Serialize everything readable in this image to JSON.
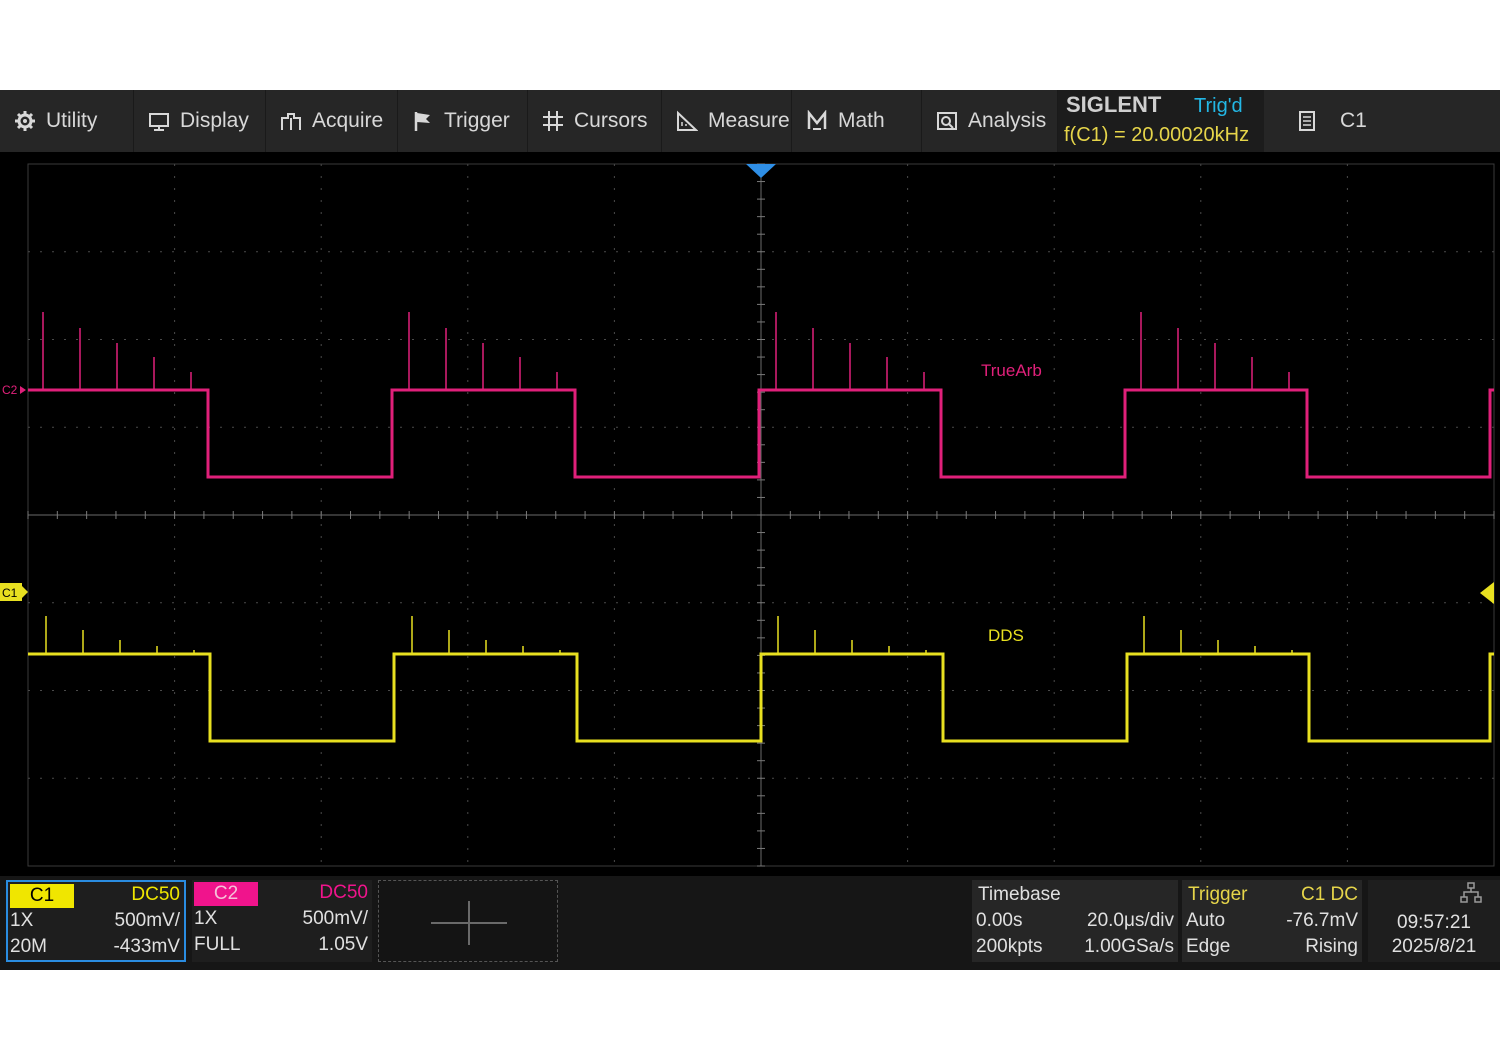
{
  "menu": {
    "items": [
      {
        "label": "Utility",
        "icon": "gear-icon"
      },
      {
        "label": "Display",
        "icon": "monitor-icon"
      },
      {
        "label": "Acquire",
        "icon": "acquire-icon"
      },
      {
        "label": "Trigger",
        "icon": "flag-icon"
      },
      {
        "label": "Cursors",
        "icon": "cursors-icon"
      },
      {
        "label": "Measure",
        "icon": "measure-icon"
      },
      {
        "label": "Math",
        "icon": "math-icon"
      },
      {
        "label": "Analysis",
        "icon": "analysis-icon"
      }
    ]
  },
  "brand": {
    "logo": "SIGLENT",
    "trigger_status": "Trig'd",
    "frequency": "f(C1) = 20.00020kHz"
  },
  "channel_menu": {
    "label": "C1",
    "icon": "document-icon"
  },
  "markers": {
    "c2_label": "C2",
    "c1_label": "C1"
  },
  "waveforms": {
    "c2": {
      "name": "TrueArb",
      "color": "#e0207a"
    },
    "c1": {
      "name": "DDS",
      "color": "#e8e020"
    }
  },
  "channels": {
    "c1": {
      "tag": "C1",
      "coupling": "DC50",
      "probe": "1X",
      "scale": "500mV/",
      "bandwidth": "20M",
      "offset": "-433mV",
      "color": "#f0e600"
    },
    "c2": {
      "tag": "C2",
      "coupling": "DC50",
      "probe": "1X",
      "scale": "500mV/",
      "bandwidth": "FULL",
      "offset": "1.05V",
      "color": "#f0148c"
    }
  },
  "timebase": {
    "title": "Timebase",
    "delay": "0.00s",
    "scale": "20.0μs/div",
    "memory": "200kpts",
    "sample_rate": "1.00GSa/s"
  },
  "trigger": {
    "title": "Trigger",
    "source": "C1 DC",
    "mode": "Auto",
    "level": "-76.7mV",
    "type": "Edge",
    "slope": "Rising"
  },
  "clock": {
    "time": "09:57:21",
    "date": "2025/8/21"
  }
}
